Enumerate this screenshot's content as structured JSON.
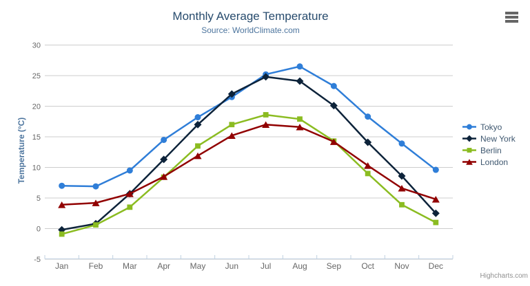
{
  "chart": {
    "credits": "Highcharts.com",
    "context_menu_icon": "hamburger-icon"
  },
  "chart_data": {
    "type": "line",
    "title": "Monthly Average Temperature",
    "subtitle": "Source: WorldClimate.com",
    "categories": [
      "Jan",
      "Feb",
      "Mar",
      "Apr",
      "May",
      "Jun",
      "Jul",
      "Aug",
      "Sep",
      "Oct",
      "Nov",
      "Dec"
    ],
    "series": [
      {
        "name": "Tokyo",
        "color": "#2f7ed8",
        "marker": "circle",
        "values": [
          7.0,
          6.9,
          9.5,
          14.5,
          18.2,
          21.5,
          25.2,
          26.5,
          23.3,
          18.3,
          13.9,
          9.6
        ]
      },
      {
        "name": "New York",
        "color": "#0d233a",
        "marker": "diamond",
        "values": [
          -0.2,
          0.8,
          5.7,
          11.3,
          17.0,
          22.0,
          24.8,
          24.1,
          20.1,
          14.1,
          8.6,
          2.5
        ]
      },
      {
        "name": "Berlin",
        "color": "#8bbc21",
        "marker": "square",
        "values": [
          -0.9,
          0.6,
          3.5,
          8.4,
          13.5,
          17.0,
          18.6,
          17.9,
          14.3,
          9.0,
          3.9,
          1.0
        ]
      },
      {
        "name": "London",
        "color": "#910000",
        "marker": "triangle-up",
        "values": [
          3.9,
          4.2,
          5.7,
          8.5,
          11.9,
          15.2,
          17.0,
          16.6,
          14.2,
          10.3,
          6.6,
          4.8
        ]
      }
    ],
    "xlabel": "",
    "ylabel": "Temperature (°C)",
    "ylim": [
      -5,
      30
    ],
    "y_ticks": [
      -5,
      0,
      5,
      10,
      15,
      20,
      25,
      30
    ],
    "grid": true,
    "legend_position": "right-middle"
  },
  "colors": {
    "background": "#ffffff",
    "grid": "#cccccc",
    "axis_line": "#c0d0e0",
    "tick_label": "#666666",
    "title": "#274b6d",
    "subtitle": "#4d759e",
    "axis_title": "#4d759e",
    "legend_text": "#3e576f",
    "credits": "#909090",
    "menu_icon": "#666666"
  }
}
